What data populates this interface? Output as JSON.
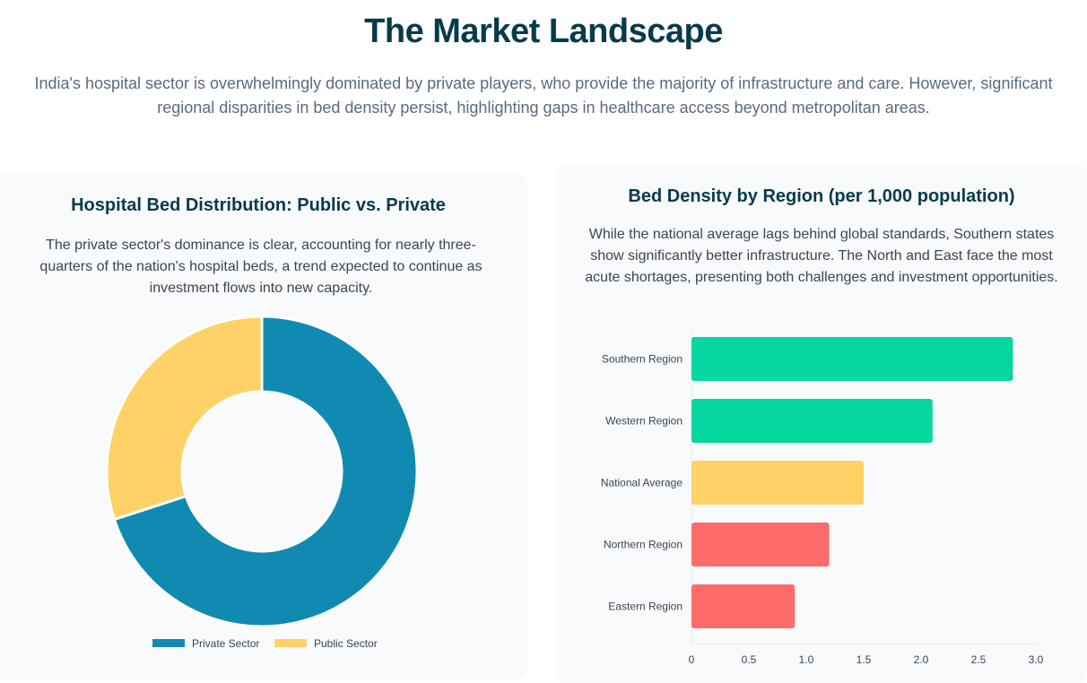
{
  "header": {
    "title": "The Market Landscape",
    "intro": "India's hospital sector is overwhelmingly dominated by private players, who provide the majority of infrastructure and care. However, significant regional disparities in bed density persist, highlighting gaps in healthcare access beyond metropolitan areas."
  },
  "left_card": {
    "title": "Hospital Bed Distribution: Public vs. Private",
    "text": "The private sector's dominance is clear, accounting for nearly three-quarters of the nation's hospital beds, a trend expected to continue as investment flows into new capacity."
  },
  "right_card": {
    "title": "Bed Density by Region (per 1,000 population)",
    "text": "While the national average lags behind global standards, Southern states show significantly better infrastructure. The North and East face the most acute shortages, presenting both challenges and investment opportunities."
  },
  "chart_data": [
    {
      "type": "pie",
      "variant": "doughnut",
      "categories": [
        "Private Sector",
        "Public Sector"
      ],
      "values": [
        70,
        30
      ],
      "colors": [
        "#118ab2",
        "#ffd166"
      ],
      "legend": "bottom"
    },
    {
      "type": "bar",
      "orientation": "horizontal",
      "categories": [
        "Southern Region",
        "Western Region",
        "National Average",
        "Northern Region",
        "Eastern Region"
      ],
      "values": [
        2.8,
        2.1,
        1.5,
        1.2,
        0.9
      ],
      "colors": [
        "#06d6a0",
        "#06d6a0",
        "#ffd166",
        "#ff6b6b",
        "#ff6b6b"
      ],
      "xlim": [
        0,
        3.0
      ],
      "xticks": [
        "0",
        "0.5",
        "1.0",
        "1.5",
        "2.0",
        "2.5",
        "3.0"
      ],
      "grid": false
    }
  ]
}
